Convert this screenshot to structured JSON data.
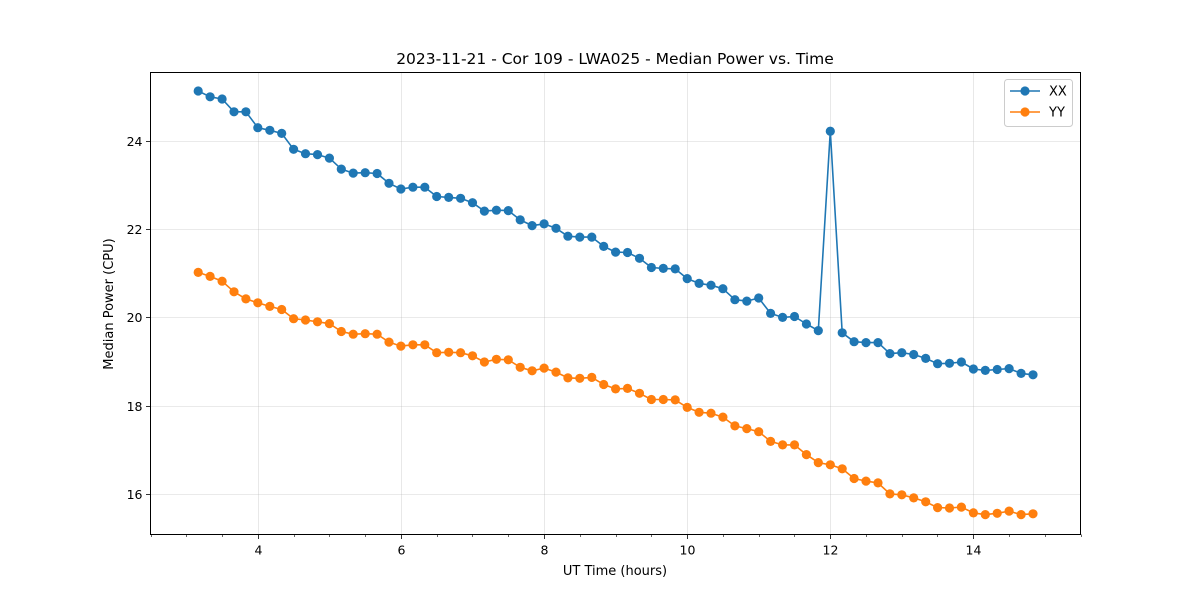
{
  "chart_data": {
    "type": "line",
    "title": "2023-11-21 - Cor 109 - LWA025 - Median Power vs. Time",
    "xlabel": "UT Time (hours)",
    "ylabel": "Median Power (CPU)",
    "xlim": [
      2.5,
      15.5
    ],
    "ylim": [
      15.08,
      25.55
    ],
    "xticks": [
      4,
      6,
      8,
      10,
      12,
      14
    ],
    "yticks": [
      16,
      18,
      20,
      22,
      24
    ],
    "grid": true,
    "legend_position": "top-right",
    "x_start": 3.167,
    "x_step": 0.1667,
    "series": [
      {
        "name": "XX",
        "color": "#1f77b4",
        "values": [
          25.13,
          25.0,
          24.95,
          24.66,
          24.66,
          24.3,
          24.24,
          24.17,
          23.81,
          23.71,
          23.69,
          23.61,
          23.36,
          23.27,
          23.28,
          23.26,
          23.04,
          22.91,
          22.95,
          22.95,
          22.74,
          22.72,
          22.7,
          22.6,
          22.41,
          22.43,
          22.42,
          22.21,
          22.08,
          22.12,
          22.02,
          21.84,
          21.82,
          21.82,
          21.61,
          21.48,
          21.47,
          21.34,
          21.13,
          21.11,
          21.1,
          20.88,
          20.77,
          20.73,
          20.65,
          20.4,
          20.37,
          20.44,
          20.09,
          20.0,
          20.02,
          19.85,
          19.7,
          24.22,
          19.65,
          19.45,
          19.43,
          19.43,
          19.18,
          19.2,
          19.16,
          19.07,
          18.95,
          18.96,
          18.99,
          18.83,
          18.8,
          18.82,
          18.84,
          18.73,
          18.7
        ]
      },
      {
        "name": "YY",
        "color": "#ff7f0e",
        "values": [
          21.02,
          20.93,
          20.82,
          20.58,
          20.42,
          20.33,
          20.25,
          20.18,
          19.97,
          19.94,
          19.9,
          19.86,
          19.68,
          19.62,
          19.63,
          19.62,
          19.44,
          19.35,
          19.38,
          19.38,
          19.2,
          19.21,
          19.2,
          19.13,
          18.99,
          19.05,
          19.04,
          18.87,
          18.79,
          18.85,
          18.76,
          18.63,
          18.62,
          18.64,
          18.48,
          18.38,
          18.39,
          18.28,
          18.14,
          18.14,
          18.13,
          17.96,
          17.85,
          17.83,
          17.74,
          17.54,
          17.48,
          17.41,
          17.19,
          17.11,
          17.11,
          16.89,
          16.71,
          16.66,
          16.57,
          16.35,
          16.29,
          16.25,
          16.0,
          15.98,
          15.91,
          15.82,
          15.69,
          15.68,
          15.7,
          15.57,
          15.53,
          15.56,
          15.61,
          15.53,
          15.55
        ]
      }
    ]
  }
}
